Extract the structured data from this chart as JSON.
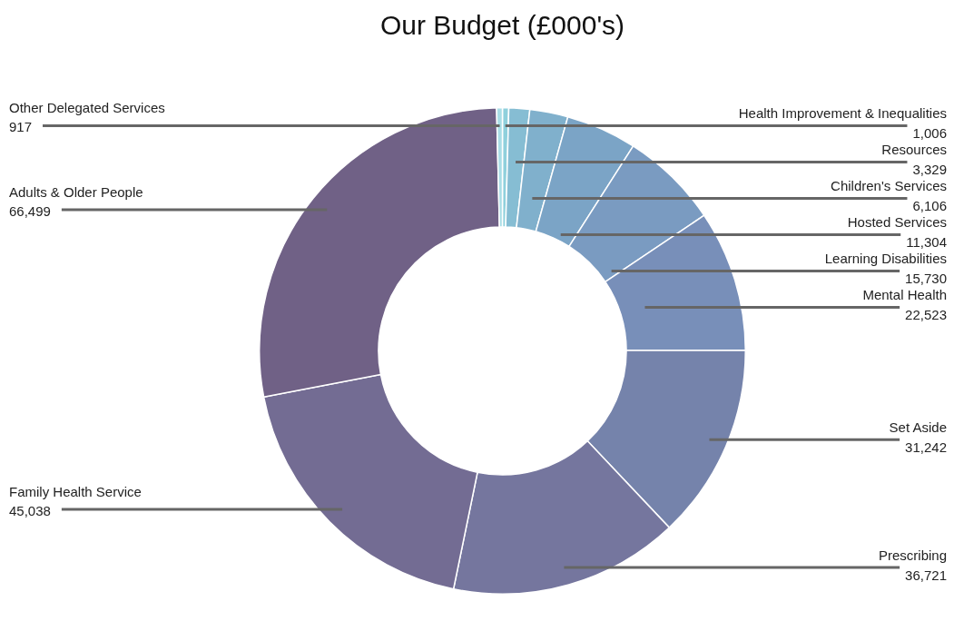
{
  "chart_data": {
    "type": "donut",
    "title": "Our Budget (£000's)",
    "categories": [
      "Health Improvement & Inequalities",
      "Resources",
      "Children's Services",
      "Hosted Services",
      "Learning Disabilities",
      "Mental Health",
      "Set Aside",
      "Prescribing",
      "Family Health Service",
      "Adults & Older People",
      "Other Delegated Services"
    ],
    "values": [
      1006,
      3329,
      6106,
      11304,
      15730,
      22523,
      31242,
      36721,
      45038,
      66499,
      917
    ],
    "colors": [
      "#8fd0dc",
      "#86bdd3",
      "#80b0cc",
      "#7ba4c6",
      "#7a9bc1",
      "#788fb9",
      "#7583ab",
      "#75769e",
      "#736c93",
      "#706186",
      "#a9dde6"
    ],
    "value_labels": [
      "1,006",
      "3,329",
      "6,106",
      "11,304",
      "15,730",
      "22,523",
      "31,242",
      "36,721",
      "45,038",
      "66,499",
      "917"
    ],
    "legend": false
  }
}
